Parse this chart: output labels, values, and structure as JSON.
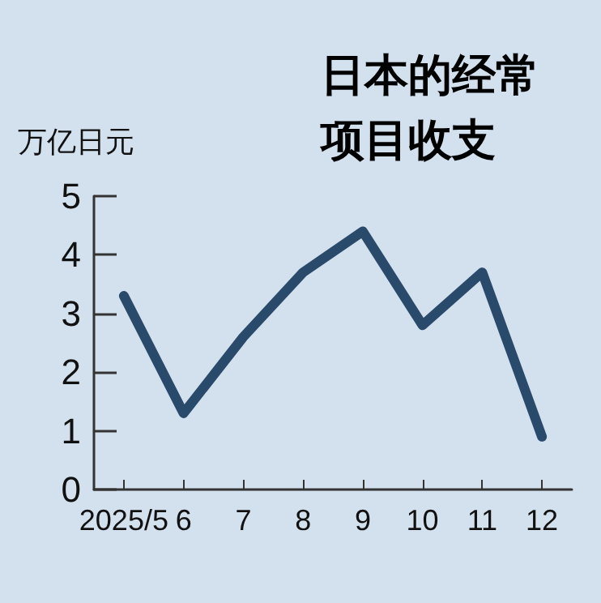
{
  "chart_data": {
    "type": "line",
    "title": "日本的经常项目收支",
    "ylabel": "万亿日元",
    "categories": [
      "2025/5",
      "6",
      "7",
      "8",
      "9",
      "10",
      "11",
      "12"
    ],
    "series": [
      {
        "color": "#2a4a6c",
        "values": [
          3.3,
          1.3,
          2.6,
          3.7,
          4.4,
          2.8,
          3.7,
          0.9
        ]
      }
    ],
    "ylim": [
      0,
      5
    ],
    "yticks": [
      0,
      1,
      2,
      3,
      4,
      5
    ],
    "grid": false,
    "marker": "none",
    "line_style": "solid"
  }
}
